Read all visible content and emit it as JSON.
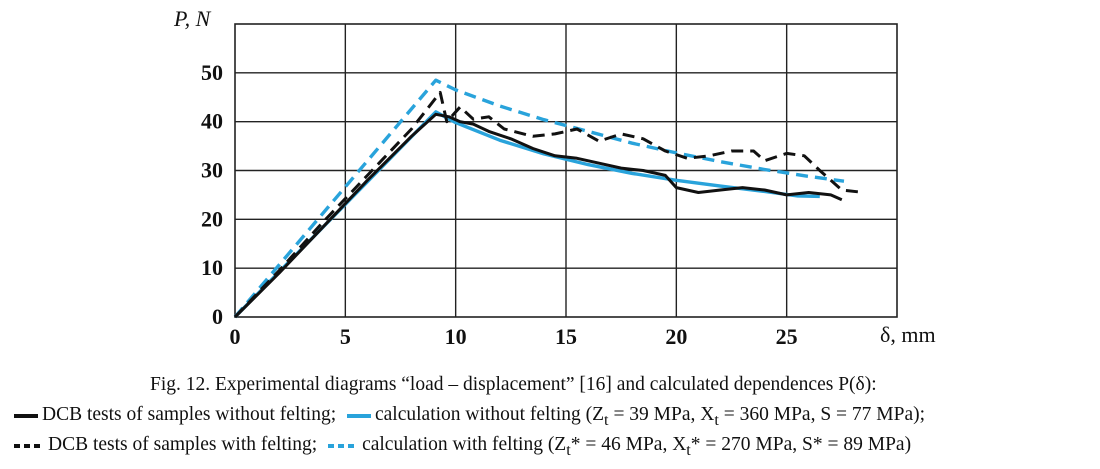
{
  "chart_data": {
    "type": "line",
    "y_axis_label": "P, N",
    "x_axis_label": "δ, mm",
    "xlim": [
      0,
      30
    ],
    "ylim": [
      0,
      60
    ],
    "x_ticks": [
      "0",
      "5",
      "10",
      "15",
      "20",
      "25"
    ],
    "y_ticks": [
      "0",
      "10",
      "20",
      "30",
      "40",
      "50"
    ],
    "grid": true,
    "series": [
      {
        "name": "DCB tests of samples without felting",
        "style": "solid",
        "color": "#111111",
        "points": [
          [
            0,
            0
          ],
          [
            2,
            9
          ],
          [
            4,
            18.5
          ],
          [
            6,
            28
          ],
          [
            8,
            37
          ],
          [
            9.1,
            41.5
          ],
          [
            9.7,
            41
          ],
          [
            10.2,
            40
          ],
          [
            10.8,
            39.5
          ],
          [
            11.5,
            38
          ],
          [
            12.5,
            36.5
          ],
          [
            13.5,
            34.5
          ],
          [
            14.5,
            33
          ],
          [
            15.5,
            32.5
          ],
          [
            16.5,
            31.5
          ],
          [
            17.5,
            30.5
          ],
          [
            18.5,
            30
          ],
          [
            19.5,
            29
          ],
          [
            20,
            26.5
          ],
          [
            21,
            25.5
          ],
          [
            22,
            26
          ],
          [
            23,
            26.5
          ],
          [
            24,
            26
          ],
          [
            25,
            25
          ],
          [
            26,
            25.5
          ],
          [
            27,
            25
          ],
          [
            27.5,
            24
          ]
        ]
      },
      {
        "name": "calculation without felting",
        "style": "solid",
        "color": "#29a3db",
        "points": [
          [
            0,
            0
          ],
          [
            9.1,
            42
          ],
          [
            10,
            39.8
          ],
          [
            12,
            36.2
          ],
          [
            14,
            33.4
          ],
          [
            16,
            31.2
          ],
          [
            18,
            29.4
          ],
          [
            20,
            28
          ],
          [
            22,
            26.8
          ],
          [
            24,
            25.7
          ],
          [
            25.5,
            24.8
          ],
          [
            26.5,
            24.7
          ]
        ]
      },
      {
        "name": "DCB tests of samples with felting",
        "style": "dashed",
        "color": "#111111",
        "points": [
          [
            0,
            0
          ],
          [
            2,
            9.5
          ],
          [
            4,
            19.5
          ],
          [
            6,
            29
          ],
          [
            8,
            38.5
          ],
          [
            9.3,
            46
          ],
          [
            9.6,
            40
          ],
          [
            10.2,
            43
          ],
          [
            10.8,
            40.5
          ],
          [
            11.5,
            41
          ],
          [
            12.2,
            38.5
          ],
          [
            13.5,
            37
          ],
          [
            14.5,
            37.5
          ],
          [
            15.5,
            38.5
          ],
          [
            16.5,
            36
          ],
          [
            17.5,
            37.5
          ],
          [
            18.5,
            36.5
          ],
          [
            19.5,
            34
          ],
          [
            20.5,
            32.5
          ],
          [
            21.5,
            33
          ],
          [
            22.5,
            34
          ],
          [
            23.5,
            34
          ],
          [
            24,
            32
          ],
          [
            25,
            33.5
          ],
          [
            25.8,
            33
          ],
          [
            26.5,
            30
          ],
          [
            27.5,
            26
          ],
          [
            28.5,
            25.5
          ]
        ]
      },
      {
        "name": "calculation with felting",
        "style": "dashed",
        "color": "#29a3db",
        "points": [
          [
            0,
            0
          ],
          [
            9.1,
            48.5
          ],
          [
            10,
            46.5
          ],
          [
            12,
            43.2
          ],
          [
            14,
            40.4
          ],
          [
            16,
            38
          ],
          [
            18,
            35.6
          ],
          [
            20,
            33.6
          ],
          [
            22,
            31.8
          ],
          [
            24,
            30.2
          ],
          [
            26,
            28.8
          ],
          [
            27.6,
            27.8
          ]
        ]
      }
    ]
  },
  "caption": {
    "line1": "Fig. 12. Experimental diagrams “load – displacement” [16] and calculated dependences P(δ):",
    "legend1_a": "DCB tests of samples without felting;",
    "legend1_b": "calculation without felting (Z",
    "legend1_b_sub": "t",
    "legend1_b2": " = 39 MPa, X",
    "legend1_b2_sub": "t",
    "legend1_b3": " = 360 MPa, S = 77 MPa);",
    "legend2_a": "DCB tests of samples with felting;",
    "legend2_b": "calculation with felting (Z",
    "legend2_b_sub": "t",
    "legend2_b2": "* = 46 MPa, X",
    "legend2_b2_sub": "t",
    "legend2_b3": "* = 270 MPa, S* = 89 MPa)"
  }
}
